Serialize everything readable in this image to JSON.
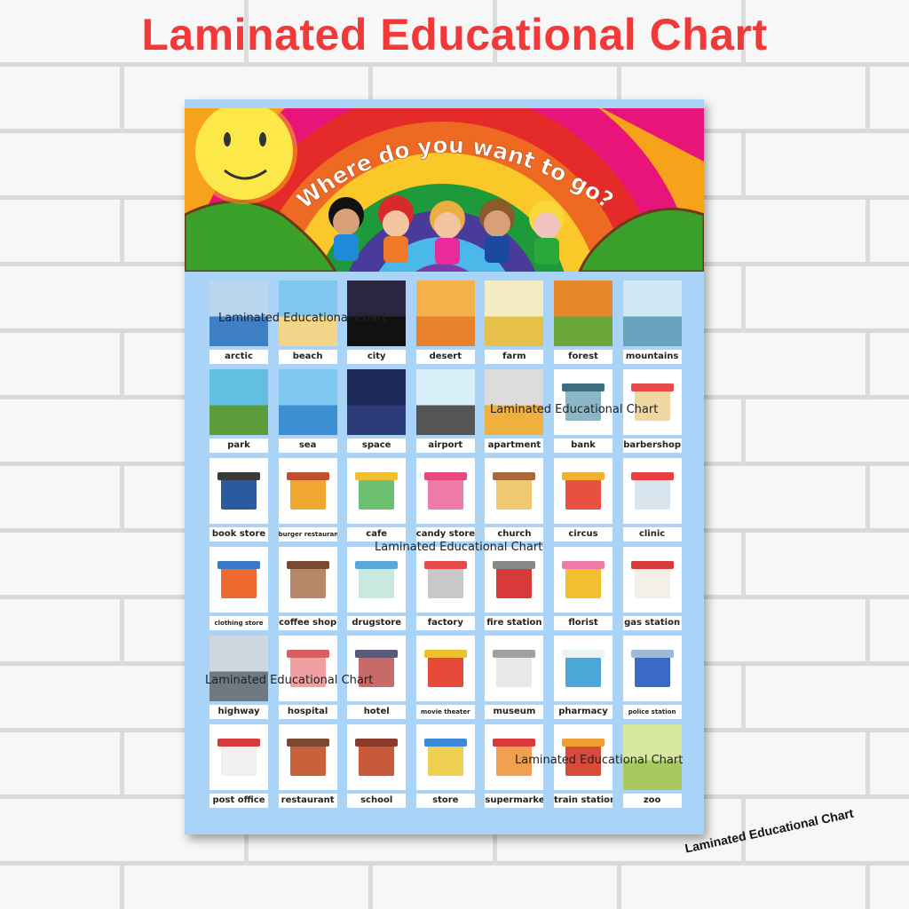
{
  "page_title": "Laminated Educational Chart",
  "poster": {
    "heading": "Where do you want to go?",
    "background_color": "#a9d3f7",
    "items": [
      {
        "label": "arctic",
        "kind": "scene",
        "top": "#b9d6ef",
        "bottom": "#3f7fc4"
      },
      {
        "label": "beach",
        "kind": "scene",
        "top": "#7fc7ef",
        "bottom": "#f3d58a"
      },
      {
        "label": "city",
        "kind": "scene",
        "top": "#2a2540",
        "bottom": "#111111"
      },
      {
        "label": "desert",
        "kind": "scene",
        "top": "#f6b24a",
        "bottom": "#e8802c"
      },
      {
        "label": "farm",
        "kind": "scene",
        "top": "#f4ecc4",
        "bottom": "#e6c04a"
      },
      {
        "label": "forest",
        "kind": "scene",
        "top": "#e8882c",
        "bottom": "#6aa63a"
      },
      {
        "label": "mountains",
        "kind": "scene",
        "top": "#cfe8f3",
        "bottom": "#6aa3c0"
      },
      {
        "label": "park",
        "kind": "scene",
        "top": "#62bfe0",
        "bottom": "#5c9c3a"
      },
      {
        "label": "sea",
        "kind": "scene",
        "top": "#7fc8ef",
        "bottom": "#3c8fd0"
      },
      {
        "label": "space",
        "kind": "scene",
        "top": "#1d2a5a",
        "bottom": "#2b3a78"
      },
      {
        "label": "airport",
        "kind": "scene",
        "top": "#d8effa",
        "bottom": "#555555"
      },
      {
        "label": "apartment",
        "kind": "scene",
        "top": "#dcdcdc",
        "bottom": "#f0b040"
      },
      {
        "label": "bank",
        "kind": "building",
        "body": "#8ab6c8",
        "roof": "#3c6e7d"
      },
      {
        "label": "barbershop",
        "kind": "building",
        "body": "#f0d6a0",
        "roof": "#e84a4a"
      },
      {
        "label": "book store",
        "kind": "building",
        "body": "#2c5aa0",
        "roof": "#3a3a3a"
      },
      {
        "label": "burger restaurant",
        "kind": "building",
        "body": "#f0a830",
        "roof": "#c0502c",
        "small": true
      },
      {
        "label": "cafe",
        "kind": "building",
        "body": "#6cc070",
        "roof": "#f0c030"
      },
      {
        "label": "candy store",
        "kind": "building",
        "body": "#f07aa8",
        "roof": "#e8487a"
      },
      {
        "label": "church",
        "kind": "building",
        "body": "#f0c870",
        "roof": "#a86a3a"
      },
      {
        "label": "circus",
        "kind": "building",
        "body": "#e85040",
        "roof": "#f0b030"
      },
      {
        "label": "clinic",
        "kind": "building",
        "body": "#d8e4ee",
        "roof": "#e84040"
      },
      {
        "label": "clothing store",
        "kind": "building",
        "body": "#f06a30",
        "roof": "#3a78c8",
        "small": true
      },
      {
        "label": "coffee shop",
        "kind": "building",
        "body": "#b8876a",
        "roof": "#7a4a30"
      },
      {
        "label": "drugstore",
        "kind": "building",
        "body": "#c8e8e0",
        "roof": "#5aa8d8"
      },
      {
        "label": "factory",
        "kind": "building",
        "body": "#c8c8c8",
        "roof": "#e84a4a"
      },
      {
        "label": "fire station",
        "kind": "building",
        "body": "#d83a3a",
        "roof": "#888888"
      },
      {
        "label": "florist",
        "kind": "building",
        "body": "#f0c030",
        "roof": "#f07aa8"
      },
      {
        "label": "gas station",
        "kind": "building",
        "body": "#f4f0e8",
        "roof": "#d83a3a"
      },
      {
        "label": "highway",
        "kind": "scene",
        "top": "#cfd8e0",
        "bottom": "#707880"
      },
      {
        "label": "hospital",
        "kind": "building",
        "body": "#f0a0a0",
        "roof": "#d86060"
      },
      {
        "label": "hotel",
        "kind": "building",
        "body": "#c86a6a",
        "roof": "#5a5a7a"
      },
      {
        "label": "movie theater",
        "kind": "building",
        "body": "#e84a3a",
        "roof": "#f0c030",
        "small": true
      },
      {
        "label": "museum",
        "kind": "building",
        "body": "#e8e8e8",
        "roof": "#a0a0a0"
      },
      {
        "label": "pharmacy",
        "kind": "building",
        "body": "#4aa8d8",
        "roof": "#e8f4f8"
      },
      {
        "label": "police station",
        "kind": "building",
        "body": "#3a6ac8",
        "roof": "#a0b8d8",
        "small": true
      },
      {
        "label": "post office",
        "kind": "building",
        "body": "#f0f0f0",
        "roof": "#d83a3a"
      },
      {
        "label": "restaurant",
        "kind": "building",
        "body": "#c8603a",
        "roof": "#7a4a30"
      },
      {
        "label": "school",
        "kind": "building",
        "body": "#c85a3a",
        "roof": "#8a3a2a"
      },
      {
        "label": "store",
        "kind": "building",
        "body": "#f0d050",
        "roof": "#3a8ad8"
      },
      {
        "label": "supermarket",
        "kind": "building",
        "body": "#f0a050",
        "roof": "#d83a3a"
      },
      {
        "label": "train station",
        "kind": "building",
        "body": "#d84a3a",
        "roof": "#f0a030"
      },
      {
        "label": "zoo",
        "kind": "scene",
        "top": "#d8e8a0",
        "bottom": "#a8c860"
      }
    ]
  },
  "watermarks": [
    "Laminated Educational Chart",
    "Laminated Educational Chart",
    "Laminated Educational Chart",
    "Laminated Educational Chart",
    "Laminated Educational Chart"
  ],
  "corner_watermark": "Laminated Educational Chart"
}
